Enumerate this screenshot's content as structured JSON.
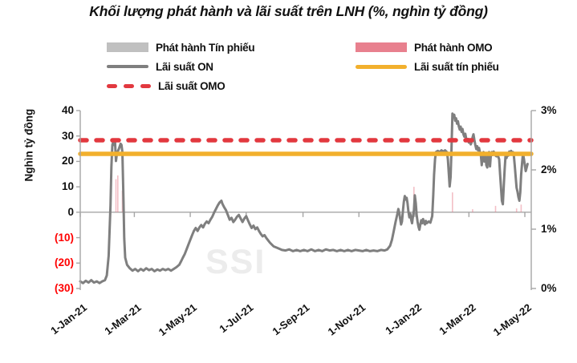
{
  "title": "Khối lượng phát hành và lãi suất trên LNH (%, nghìn tỷ đồng)",
  "watermark": "SSI",
  "colors": {
    "axis": "#a6a6a6",
    "text": "#111111",
    "negative_tick": "#ff0000",
    "watermark": "#ececec",
    "tin_phieu_bar": "#c0c0c0",
    "omo_bar": "#e8808e",
    "on_line": "#7f7f7f",
    "tin_phieu_line": "#f2b02d",
    "omo_line": "#e2383f"
  },
  "legend": [
    {
      "name": "tin-phieu-bar",
      "label": "Phát hành Tín phiếu",
      "swatch": "bar",
      "color": "#c0c0c0"
    },
    {
      "name": "omo-bar",
      "label": "Phát hành OMO",
      "swatch": "bar",
      "color": "#e8808e"
    },
    {
      "name": "on-line",
      "label": "Lãi suất ON",
      "swatch": "line",
      "color": "#7f7f7f"
    },
    {
      "name": "tin-phieu-line",
      "label": "Lãi suất tín phiếu",
      "swatch": "line-thick",
      "color": "#f2b02d"
    },
    {
      "name": "omo-line",
      "label": "Lãi suất OMO",
      "swatch": "dashed",
      "color": "#e2383f"
    }
  ],
  "chart_data": {
    "type": "composite",
    "title": "Khối lượng phát hành và lãi suất trên LNH (%, nghìn tỷ đồng)",
    "gridlines": false,
    "legend_position": "top",
    "y_left": {
      "label": "Nghìn tỷ đồng",
      "range": [
        -30,
        40
      ],
      "tick_values": [
        40,
        30,
        20,
        10,
        0,
        -10,
        -20,
        -30
      ],
      "tick_labels": [
        "40",
        "30",
        "20",
        "10",
        "0",
        "(10)",
        "(20)",
        "(30)"
      ]
    },
    "y_right": {
      "label": "%",
      "range": [
        0,
        3
      ],
      "tick_values": [
        3,
        2,
        1,
        0
      ],
      "tick_labels": [
        "3%",
        "2%",
        "1%",
        "0%"
      ]
    },
    "x": {
      "epoch": "2021-01-01",
      "range_days": [
        0,
        492
      ],
      "tick_days": [
        0,
        59,
        120,
        181,
        243,
        304,
        365,
        424,
        485
      ],
      "tick_labels": [
        "1-Jan-21",
        "1-Mar-21",
        "1-May-21",
        "1-Jul-21",
        "1-Sep-21",
        "1-Nov-21",
        "1-Jan-22",
        "1-Mar-22",
        "1-May-22"
      ]
    },
    "series": [
      {
        "id": "tin-phieu-bars",
        "name": "Phát hành Tín phiếu",
        "type": "bar",
        "axis": "left",
        "color": "#c0c0c0",
        "points": []
      },
      {
        "id": "omo-bars",
        "name": "Phát hành OMO",
        "type": "bar",
        "axis": "left",
        "color": "#e8808e",
        "points": [
          [
            39,
            13
          ],
          [
            41,
            14.5
          ],
          [
            46,
            8.5
          ],
          [
            364,
            10
          ],
          [
            406,
            7.8
          ],
          [
            428,
            1.2
          ],
          [
            453,
            2.5
          ],
          [
            476,
            1.5
          ],
          [
            481,
            3
          ]
        ]
      },
      {
        "id": "on-rate-line",
        "name": "Lãi suất ON",
        "type": "line",
        "axis": "right",
        "color": "#7f7f7f",
        "width": 3,
        "points": [
          [
            0,
            0.12
          ],
          [
            3,
            0.09
          ],
          [
            6,
            0.13
          ],
          [
            9,
            0.1
          ],
          [
            12,
            0.14
          ],
          [
            15,
            0.1
          ],
          [
            18,
            0.12
          ],
          [
            21,
            0.09
          ],
          [
            24,
            0.12
          ],
          [
            27,
            0.14
          ],
          [
            29,
            0.22
          ],
          [
            31,
            0.55
          ],
          [
            33,
            1.4
          ],
          [
            34,
            2.05
          ],
          [
            35,
            2.42
          ],
          [
            36,
            2.47
          ],
          [
            37,
            2.42
          ],
          [
            38,
            2.46
          ],
          [
            39,
            2.15
          ],
          [
            40,
            2.28
          ],
          [
            42,
            2.35
          ],
          [
            44,
            2.44
          ],
          [
            45,
            2.42
          ],
          [
            46,
            2.3
          ],
          [
            47,
            1.6
          ],
          [
            48,
            0.85
          ],
          [
            49,
            0.52
          ],
          [
            51,
            0.4
          ],
          [
            54,
            0.34
          ],
          [
            57,
            0.3
          ],
          [
            60,
            0.33
          ],
          [
            63,
            0.29
          ],
          [
            66,
            0.33
          ],
          [
            69,
            0.3
          ],
          [
            72,
            0.34
          ],
          [
            75,
            0.31
          ],
          [
            78,
            0.33
          ],
          [
            81,
            0.29
          ],
          [
            84,
            0.32
          ],
          [
            87,
            0.3
          ],
          [
            90,
            0.33
          ],
          [
            93,
            0.31
          ],
          [
            96,
            0.33
          ],
          [
            99,
            0.3
          ],
          [
            102,
            0.33
          ],
          [
            105,
            0.36
          ],
          [
            108,
            0.4
          ],
          [
            110,
            0.46
          ],
          [
            112,
            0.52
          ],
          [
            114,
            0.58
          ],
          [
            116,
            0.66
          ],
          [
            118,
            0.74
          ],
          [
            120,
            0.82
          ],
          [
            122,
            0.9
          ],
          [
            124,
            0.97
          ],
          [
            126,
            1.02
          ],
          [
            128,
            0.97
          ],
          [
            130,
            1.03
          ],
          [
            132,
            1.07
          ],
          [
            134,
            1.03
          ],
          [
            136,
            1.09
          ],
          [
            138,
            1.13
          ],
          [
            140,
            1.1
          ],
          [
            142,
            1.16
          ],
          [
            144,
            1.21
          ],
          [
            146,
            1.28
          ],
          [
            148,
            1.34
          ],
          [
            150,
            1.4
          ],
          [
            152,
            1.45
          ],
          [
            154,
            1.48
          ],
          [
            155,
            1.43
          ],
          [
            157,
            1.37
          ],
          [
            159,
            1.32
          ],
          [
            161,
            1.24
          ],
          [
            163,
            1.16
          ],
          [
            165,
            1.19
          ],
          [
            167,
            1.12
          ],
          [
            169,
            1.16
          ],
          [
            171,
            1.21
          ],
          [
            173,
            1.24
          ],
          [
            175,
            1.18
          ],
          [
            177,
            1.12
          ],
          [
            179,
            1.18
          ],
          [
            181,
            1.22
          ],
          [
            183,
            1.15
          ],
          [
            185,
            1.08
          ],
          [
            187,
            1.02
          ],
          [
            189,
            1.06
          ],
          [
            191,
            1.0
          ],
          [
            193,
            1.03
          ],
          [
            195,
            0.97
          ],
          [
            197,
            0.92
          ],
          [
            199,
            0.88
          ],
          [
            201,
            0.9
          ],
          [
            203,
            0.85
          ],
          [
            205,
            0.81
          ],
          [
            207,
            0.77
          ],
          [
            209,
            0.74
          ],
          [
            211,
            0.71
          ],
          [
            214,
            0.69
          ],
          [
            217,
            0.67
          ],
          [
            220,
            0.65
          ],
          [
            224,
            0.64
          ],
          [
            228,
            0.66
          ],
          [
            232,
            0.63
          ],
          [
            236,
            0.65
          ],
          [
            240,
            0.63
          ],
          [
            244,
            0.65
          ],
          [
            248,
            0.63
          ],
          [
            252,
            0.66
          ],
          [
            256,
            0.63
          ],
          [
            260,
            0.65
          ],
          [
            264,
            0.63
          ],
          [
            268,
            0.66
          ],
          [
            272,
            0.64
          ],
          [
            276,
            0.65
          ],
          [
            280,
            0.63
          ],
          [
            284,
            0.65
          ],
          [
            288,
            0.63
          ],
          [
            292,
            0.65
          ],
          [
            296,
            0.63
          ],
          [
            300,
            0.65
          ],
          [
            304,
            0.64
          ],
          [
            308,
            0.63
          ],
          [
            312,
            0.65
          ],
          [
            316,
            0.63
          ],
          [
            320,
            0.64
          ],
          [
            324,
            0.63
          ],
          [
            328,
            0.65
          ],
          [
            332,
            0.64
          ],
          [
            335,
            0.66
          ],
          [
            338,
            0.72
          ],
          [
            340,
            0.82
          ],
          [
            342,
            0.97
          ],
          [
            344,
            1.12
          ],
          [
            346,
            1.26
          ],
          [
            347,
            1.34
          ],
          [
            348,
            1.28
          ],
          [
            349,
            1.17
          ],
          [
            350,
            1.08
          ],
          [
            351,
            1.13
          ],
          [
            352,
            1.31
          ],
          [
            353,
            1.46
          ],
          [
            354,
            1.56
          ],
          [
            355,
            1.5
          ],
          [
            356,
            1.53
          ],
          [
            357,
            1.44
          ],
          [
            358,
            1.3
          ],
          [
            359,
            1.2
          ],
          [
            360,
            1.26
          ],
          [
            361,
            1.16
          ],
          [
            362,
            1.1
          ],
          [
            363,
            1.22
          ],
          [
            364,
            1.32
          ],
          [
            365,
            1.57
          ],
          [
            366,
            1.44
          ],
          [
            367,
            1.24
          ],
          [
            368,
            1.12
          ],
          [
            369,
            1.04
          ],
          [
            370,
            0.99
          ],
          [
            371,
            1.08
          ],
          [
            372,
            1.15
          ],
          [
            373,
            1.1
          ],
          [
            374,
            1.17
          ],
          [
            375,
            1.11
          ],
          [
            376,
            1.08
          ],
          [
            377,
            1.14
          ],
          [
            378,
            1.1
          ],
          [
            380,
            1.13
          ],
          [
            382,
            1.11
          ],
          [
            384,
            1.22
          ],
          [
            385,
            1.55
          ],
          [
            386,
            1.92
          ],
          [
            387,
            2.18
          ],
          [
            388,
            2.3
          ],
          [
            390,
            2.32
          ],
          [
            392,
            2.3
          ],
          [
            394,
            2.33
          ],
          [
            396,
            2.31
          ],
          [
            398,
            2.33
          ],
          [
            400,
            2.3
          ],
          [
            401,
            2.18
          ],
          [
            402,
            1.95
          ],
          [
            403,
            1.72
          ],
          [
            404,
            1.88
          ],
          [
            405,
            2.35
          ],
          [
            406,
            2.95
          ],
          [
            407,
            2.89
          ],
          [
            408,
            2.93
          ],
          [
            409,
            2.83
          ],
          [
            410,
            2.87
          ],
          [
            411,
            2.78
          ],
          [
            412,
            2.82
          ],
          [
            413,
            2.73
          ],
          [
            414,
            2.68
          ],
          [
            415,
            2.73
          ],
          [
            416,
            2.64
          ],
          [
            417,
            2.69
          ],
          [
            418,
            2.6
          ],
          [
            419,
            2.56
          ],
          [
            420,
            2.61
          ],
          [
            421,
            2.53
          ],
          [
            422,
            2.49
          ],
          [
            423,
            2.52
          ],
          [
            424,
            2.46
          ],
          [
            425,
            2.5
          ],
          [
            426,
            2.43
          ],
          [
            427,
            2.47
          ],
          [
            428,
            2.55
          ],
          [
            429,
            2.6
          ],
          [
            430,
            2.5
          ],
          [
            431,
            2.42
          ],
          [
            432,
            2.35
          ],
          [
            433,
            2.4
          ],
          [
            434,
            2.33
          ],
          [
            435,
            2.37
          ],
          [
            436,
            2.3
          ],
          [
            437,
            2.25
          ],
          [
            438,
            2.08
          ],
          [
            439,
            2.22
          ],
          [
            440,
            2.3
          ],
          [
            441,
            2.14
          ],
          [
            442,
            2.28
          ],
          [
            443,
            2.08
          ],
          [
            444,
            2.04
          ],
          [
            445,
            2.24
          ],
          [
            446,
            2.3
          ],
          [
            447,
            2.06
          ],
          [
            448,
            2.26
          ],
          [
            449,
            2.3
          ],
          [
            450,
            2.25
          ],
          [
            451,
            2.31
          ],
          [
            452,
            2.27
          ],
          [
            453,
            2.24
          ],
          [
            454,
            2.23
          ],
          [
            455,
            2.27
          ],
          [
            456,
            2.22
          ],
          [
            457,
            2.18
          ],
          [
            458,
            1.92
          ],
          [
            459,
            1.7
          ],
          [
            460,
            1.48
          ],
          [
            461,
            1.42
          ],
          [
            462,
            1.72
          ],
          [
            463,
            2.02
          ],
          [
            464,
            2.25
          ],
          [
            465,
            2.2
          ],
          [
            466,
            2.28
          ],
          [
            467,
            2.24
          ],
          [
            468,
            2.31
          ],
          [
            469,
            2.28
          ],
          [
            470,
            2.32
          ],
          [
            471,
            2.27
          ],
          [
            472,
            2.3
          ],
          [
            473,
            2.24
          ],
          [
            474,
            2.08
          ],
          [
            475,
            1.88
          ],
          [
            476,
            1.7
          ],
          [
            477,
            1.63
          ],
          [
            478,
            1.54
          ],
          [
            479,
            1.48
          ],
          [
            480,
            1.62
          ],
          [
            481,
            1.92
          ],
          [
            482,
            2.12
          ],
          [
            483,
            2.28
          ],
          [
            484,
            2.18
          ],
          [
            485,
            2.08
          ],
          [
            486,
            1.98
          ],
          [
            487,
            2.04
          ],
          [
            488,
            2.1
          ]
        ]
      },
      {
        "id": "tin-phieu-rate-line",
        "name": "Lãi suất tín phiếu",
        "type": "line",
        "axis": "right",
        "color": "#f2b02d",
        "width": 5.5,
        "points": [
          [
            0,
            2.27
          ],
          [
            492,
            2.27
          ]
        ]
      },
      {
        "id": "omo-rate-line",
        "name": "Lãi suất OMO",
        "type": "line",
        "axis": "right",
        "color": "#e2383f",
        "width": 5.5,
        "dash": [
          8,
          12
        ],
        "points": [
          [
            0,
            2.5
          ],
          [
            492,
            2.5
          ]
        ]
      }
    ]
  }
}
